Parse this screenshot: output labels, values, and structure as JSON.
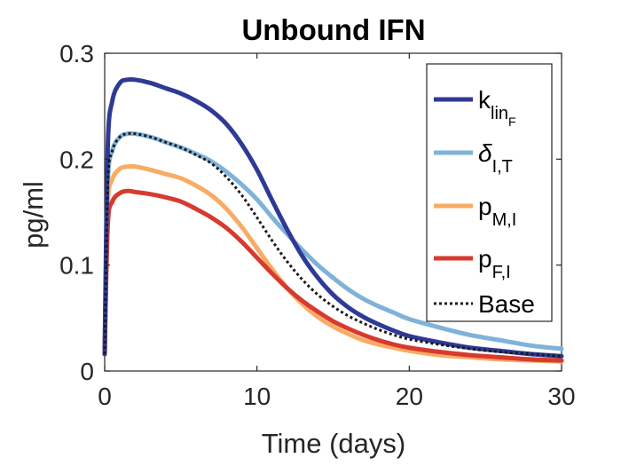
{
  "chart_data": {
    "type": "line",
    "title": "Unbound IFN",
    "xlabel": "Time (days)",
    "ylabel": "pg/ml",
    "xlim": [
      0,
      30
    ],
    "ylim": [
      0,
      0.3
    ],
    "xticks": [
      0,
      10,
      20,
      30
    ],
    "xtick_labels": [
      "0",
      "10",
      "20",
      "30"
    ],
    "yticks": [
      0,
      0.1,
      0.2,
      0.3
    ],
    "ytick_labels": [
      "0",
      "0.1",
      "0.2",
      "0.3"
    ],
    "grid": false,
    "legend_position": "top-right",
    "x": [
      0,
      0.2,
      0.5,
      1,
      1.5,
      2,
      3,
      4,
      5,
      6,
      7,
      8,
      9,
      10,
      11,
      12,
      13,
      14,
      15,
      16,
      17,
      18,
      19,
      20,
      22,
      24,
      26,
      28,
      30
    ],
    "series": [
      {
        "name": "k_lin_F",
        "legend_main": "k",
        "legend_sub": "lin",
        "legend_subsub": "F",
        "color": "#2E3A96",
        "style": "solid",
        "values": [
          0.016,
          0.21,
          0.255,
          0.272,
          0.275,
          0.275,
          0.272,
          0.267,
          0.262,
          0.255,
          0.246,
          0.233,
          0.214,
          0.19,
          0.161,
          0.133,
          0.108,
          0.088,
          0.072,
          0.06,
          0.051,
          0.044,
          0.038,
          0.033,
          0.027,
          0.022,
          0.019,
          0.016,
          0.014
        ]
      },
      {
        "name": "δ_I,T",
        "legend_main": "δ",
        "legend_sub": "I,T",
        "color": "#7FB2D9",
        "style": "solid",
        "values": [
          0.016,
          0.175,
          0.208,
          0.221,
          0.224,
          0.224,
          0.221,
          0.216,
          0.211,
          0.205,
          0.198,
          0.188,
          0.176,
          0.162,
          0.145,
          0.129,
          0.114,
          0.1,
          0.088,
          0.077,
          0.068,
          0.061,
          0.055,
          0.049,
          0.041,
          0.034,
          0.029,
          0.024,
          0.021
        ]
      },
      {
        "name": "p_M,I",
        "legend_main": "p",
        "legend_sub": "M,I",
        "color": "#F9AB63",
        "style": "solid",
        "values": [
          0.016,
          0.155,
          0.181,
          0.191,
          0.193,
          0.193,
          0.19,
          0.186,
          0.182,
          0.175,
          0.166,
          0.153,
          0.136,
          0.116,
          0.096,
          0.078,
          0.063,
          0.051,
          0.042,
          0.035,
          0.029,
          0.025,
          0.022,
          0.019,
          0.015,
          0.013,
          0.011,
          0.01,
          0.009
        ]
      },
      {
        "name": "p_F,I",
        "legend_main": "p",
        "legend_sub": "F,I",
        "color": "#D73A2F",
        "style": "solid",
        "values": [
          0.016,
          0.137,
          0.16,
          0.168,
          0.17,
          0.169,
          0.167,
          0.164,
          0.16,
          0.153,
          0.145,
          0.135,
          0.122,
          0.107,
          0.092,
          0.078,
          0.066,
          0.056,
          0.047,
          0.04,
          0.034,
          0.029,
          0.025,
          0.022,
          0.018,
          0.015,
          0.013,
          0.011,
          0.01
        ]
      },
      {
        "name": "Base",
        "legend_main": "Base",
        "color": "#1a1a1a",
        "style": "dotted",
        "values": [
          0.016,
          0.175,
          0.208,
          0.221,
          0.224,
          0.224,
          0.221,
          0.216,
          0.211,
          0.204,
          0.196,
          0.183,
          0.166,
          0.145,
          0.123,
          0.103,
          0.086,
          0.072,
          0.061,
          0.052,
          0.045,
          0.039,
          0.034,
          0.03,
          0.025,
          0.021,
          0.018,
          0.016,
          0.014
        ]
      }
    ]
  }
}
